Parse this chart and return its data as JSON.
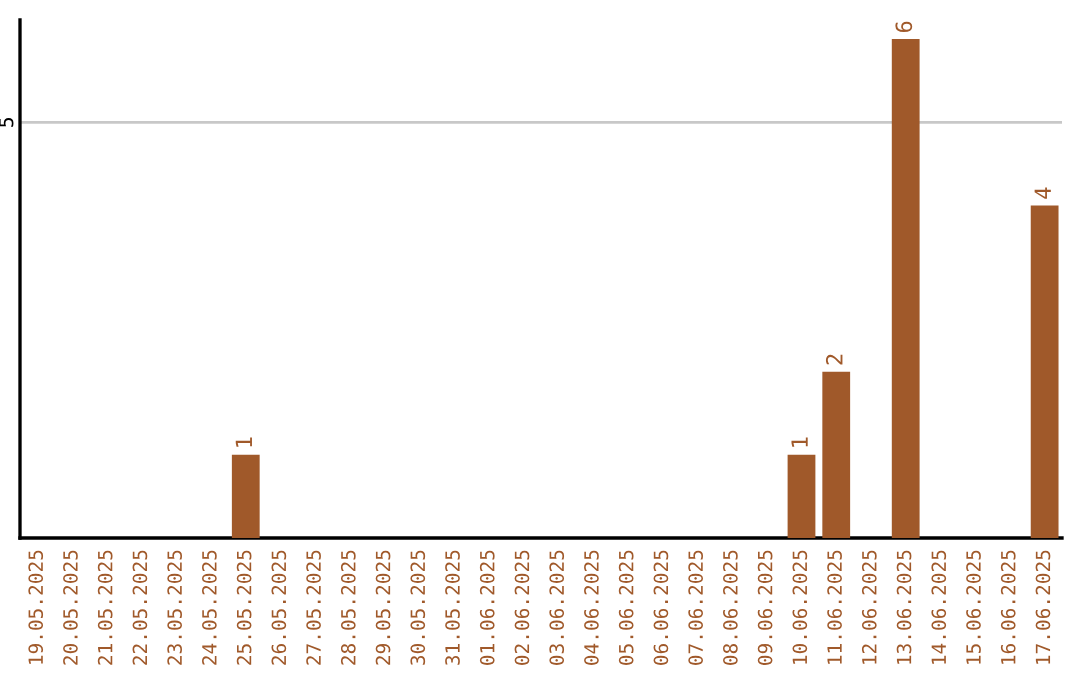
{
  "chart_data": {
    "type": "bar",
    "categories": [
      "19.05.2025",
      "20.05.2025",
      "21.05.2025",
      "22.05.2025",
      "23.05.2025",
      "24.05.2025",
      "25.05.2025",
      "26.05.2025",
      "27.05.2025",
      "28.05.2025",
      "29.05.2025",
      "30.05.2025",
      "31.05.2025",
      "01.06.2025",
      "02.06.2025",
      "03.06.2025",
      "04.06.2025",
      "05.06.2025",
      "06.06.2025",
      "07.06.2025",
      "08.06.2025",
      "09.06.2025",
      "10.06.2025",
      "11.06.2025",
      "12.06.2025",
      "13.06.2025",
      "14.06.2025",
      "15.06.2025",
      "16.06.2025",
      "17.06.2025"
    ],
    "values": [
      0,
      0,
      0,
      0,
      0,
      0,
      1,
      0,
      0,
      0,
      0,
      0,
      0,
      0,
      0,
      0,
      0,
      0,
      0,
      0,
      0,
      0,
      1,
      2,
      0,
      6,
      0,
      0,
      0,
      4
    ],
    "value_labels": [
      null,
      null,
      null,
      null,
      null,
      null,
      "1",
      null,
      null,
      null,
      null,
      null,
      null,
      null,
      null,
      null,
      null,
      null,
      null,
      null,
      null,
      null,
      "1",
      "2",
      null,
      "6",
      null,
      null,
      null,
      "4"
    ],
    "color": "#a0592a",
    "ylim": [
      0,
      6.23
    ],
    "yticks": [
      5
    ],
    "grid": "y"
  }
}
